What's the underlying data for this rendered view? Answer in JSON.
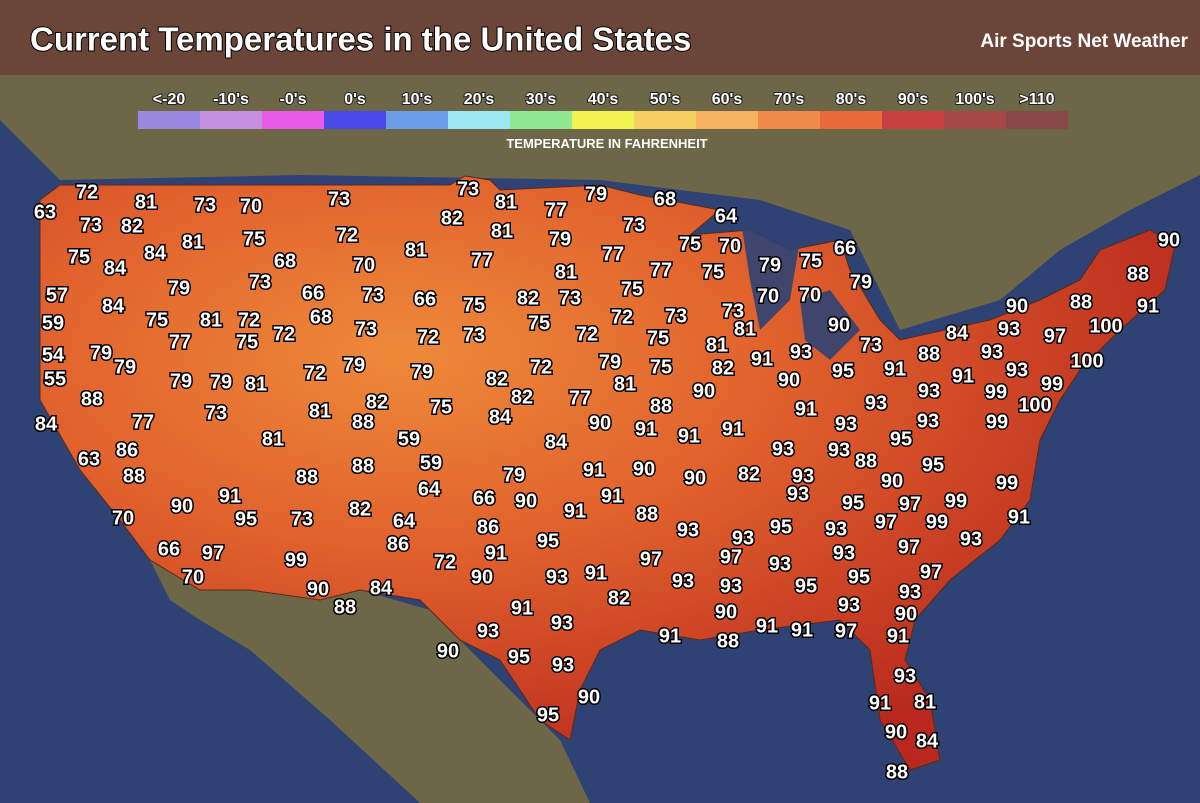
{
  "header": {
    "title": "Current Temperatures in the United States",
    "brand": "Air Sports Net Weather"
  },
  "legend": {
    "labels": [
      "<-20",
      "-10's",
      "-0's",
      "0's",
      "10's",
      "20's",
      "30's",
      "40's",
      "50's",
      "60's",
      "70's",
      "80's",
      "90's",
      "100's",
      ">110"
    ],
    "caption": "TEMPERATURE IN FAHRENHEIT"
  },
  "readings": [
    63,
    72,
    73,
    81,
    82,
    73,
    70,
    73,
    73,
    82,
    81,
    77,
    79,
    68,
    73,
    64,
    81,
    79,
    72,
    75,
    81,
    75,
    84,
    84,
    68,
    70,
    81,
    77,
    77,
    75,
    70,
    66,
    81,
    77,
    75,
    79,
    75,
    73,
    79,
    57,
    84,
    66,
    73,
    66,
    75,
    82,
    73,
    75,
    79,
    70,
    70,
    59,
    75,
    81,
    72,
    68,
    73,
    75,
    72,
    73,
    90,
    88,
    88,
    90,
    91,
    77,
    75,
    72,
    73,
    72,
    73,
    72,
    75,
    81,
    90,
    84,
    93,
    97,
    100,
    54,
    79,
    79,
    72,
    79,
    79,
    79,
    75,
    81,
    91,
    93,
    73,
    88,
    93,
    100,
    55,
    82,
    72,
    82,
    81,
    90,
    95,
    91,
    93,
    91,
    93,
    99,
    99,
    100,
    79,
    79,
    81,
    88,
    82,
    75,
    82,
    77,
    88,
    90,
    91,
    93,
    93,
    99,
    84,
    77,
    73,
    81,
    88,
    84,
    90,
    91,
    91,
    91,
    93,
    95,
    59,
    81,
    84,
    93,
    93,
    88,
    86,
    63,
    88,
    88,
    88,
    59,
    79,
    91,
    90,
    90,
    82,
    93,
    90,
    95,
    99,
    64,
    66,
    90,
    91,
    93,
    95,
    97,
    99,
    91,
    90,
    70,
    95,
    73,
    82,
    64,
    91,
    88,
    86,
    93,
    93,
    95,
    93,
    97,
    99,
    91,
    93,
    86,
    95,
    66,
    97,
    99,
    91,
    72,
    97,
    97,
    93,
    93,
    97,
    97,
    70,
    90,
    93,
    91,
    93,
    93,
    95,
    95,
    93,
    90,
    84,
    88,
    82,
    90,
    93,
    90,
    91,
    93,
    91,
    91,
    97,
    91,
    93,
    91,
    88,
    90,
    95,
    93,
    93,
    90,
    91,
    81,
    95,
    90,
    84,
    88
  ]
}
